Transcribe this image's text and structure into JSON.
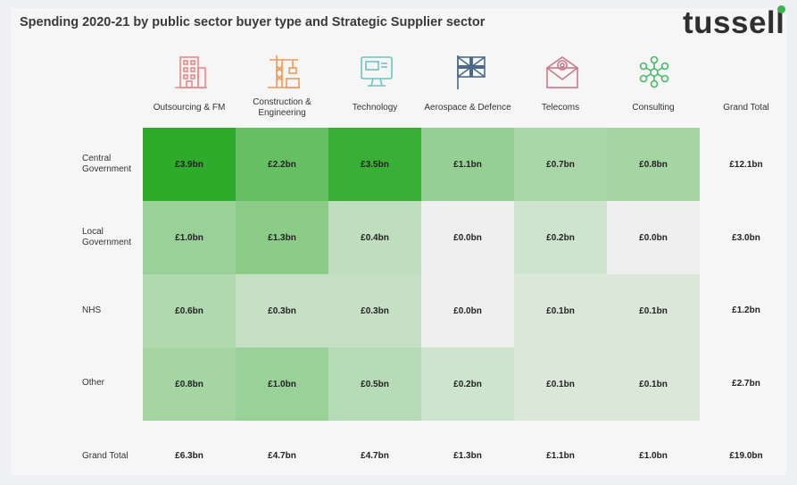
{
  "title": "Spending 2020-21 by public sector buyer type and Strategic Supplier sector",
  "logo_text": "tussell",
  "brand_dot_color": "#39b54a",
  "icons": [
    {
      "name": "building-icon",
      "color": "#e88a8a"
    },
    {
      "name": "construction-crane-icon",
      "color": "#ee9a55"
    },
    {
      "name": "computer-monitor-icon",
      "color": "#6cc3c0"
    },
    {
      "name": "union-flag-icon",
      "color": "#4a6a86"
    },
    {
      "name": "email-envelope-icon",
      "color": "#c97a8a"
    },
    {
      "name": "people-network-icon",
      "color": "#48b86a"
    }
  ],
  "chart_data": {
    "type": "heatmap",
    "title": "Spending 2020-21 by public sector buyer type and Strategic Supplier sector",
    "columns": [
      "Outsourcing & FM",
      "Construction & Engineering",
      "Technology",
      "Aerospace & Defence",
      "Telecoms",
      "Consulting"
    ],
    "rows": [
      "Central Government",
      "Local Government",
      "NHS",
      "Other"
    ],
    "values": [
      [
        3.9,
        2.2,
        3.5,
        1.1,
        0.7,
        0.8
      ],
      [
        1.0,
        1.3,
        0.4,
        0.0,
        0.2,
        0.0
      ],
      [
        0.6,
        0.3,
        0.3,
        0.0,
        0.1,
        0.1
      ],
      [
        0.8,
        1.0,
        0.5,
        0.2,
        0.1,
        0.1
      ]
    ],
    "labels": [
      [
        "£3.9bn",
        "£2.2bn",
        "£3.5bn",
        "£1.1bn",
        "£0.7bn",
        "£0.8bn"
      ],
      [
        "£1.0bn",
        "£1.3bn",
        "£0.4bn",
        "£0.0bn",
        "£0.2bn",
        "£0.0bn"
      ],
      [
        "£0.6bn",
        "£0.3bn",
        "£0.3bn",
        "£0.0bn",
        "£0.1bn",
        "£0.1bn"
      ],
      [
        "£0.8bn",
        "£1.0bn",
        "£0.5bn",
        "£0.2bn",
        "£0.1bn",
        "£0.1bn"
      ]
    ],
    "row_totals_header": "Grand Total",
    "row_totals": [
      "£12.1bn",
      "£3.0bn",
      "£1.2bn",
      "£2.7bn"
    ],
    "col_totals_label": "Grand Total",
    "col_totals": [
      "£6.3bn",
      "£4.7bn",
      "£4.7bn",
      "£1.3bn",
      "£1.1bn",
      "£1.0bn"
    ],
    "grand_total": "£19.0bn",
    "color_scale": {
      "low": "#efefef",
      "high": "#2eab2a",
      "max_value": 3.9
    }
  }
}
